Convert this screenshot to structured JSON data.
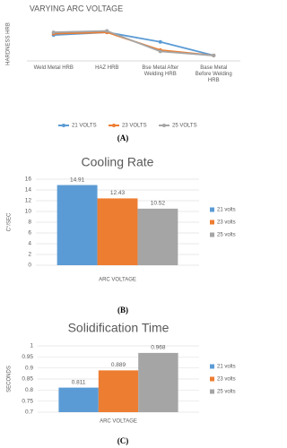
{
  "chart_data": [
    {
      "type": "line",
      "title": "VARYING ARC VOLTAGE",
      "y_label": "HARDNESS HRB",
      "caption": "(A)",
      "categories": [
        "Weld Metal HRB",
        "HAZ HRB",
        "Bse Metal After Welding HRB",
        "Base Metal Before Welding HRB"
      ],
      "series": [
        {
          "name": "21 VOLTS",
          "color": "#5b9bd5",
          "values": [
            89,
            91,
            84,
            74
          ]
        },
        {
          "name": "23 VOLTS",
          "color": "#ed7d31",
          "values": [
            90,
            91,
            78,
            74
          ]
        },
        {
          "name": "25 VOLTS",
          "color": "#a5a5a5",
          "values": [
            91,
            92,
            77,
            74
          ]
        }
      ],
      "ylim": [
        70,
        95
      ],
      "legend": "bottom"
    },
    {
      "type": "bar",
      "title": "Cooling Rate",
      "y_label": "C°/SEC",
      "caption": "(B)",
      "x_label": "ARC VOLTAGE",
      "categories": [
        "ARC VOLTAGE"
      ],
      "series": [
        {
          "name": "21 volts",
          "color": "#5b9bd5",
          "values": [
            14.91
          ]
        },
        {
          "name": "23 volts",
          "color": "#ed7d31",
          "values": [
            12.43
          ]
        },
        {
          "name": "25 volts",
          "color": "#a5a5a5",
          "values": [
            10.52
          ]
        }
      ],
      "ylim": [
        0,
        16
      ],
      "yticks": [
        0,
        2,
        4,
        6,
        8,
        10,
        12,
        14,
        16
      ],
      "grid": true,
      "legend": "right"
    },
    {
      "type": "bar",
      "title": "Solidification Time",
      "y_label": "SECONDS",
      "caption": "(C)",
      "x_label": "ARC VOLTAGE",
      "categories": [
        "ARC VOLTAGE"
      ],
      "series": [
        {
          "name": "21 volts",
          "color": "#5b9bd5",
          "values": [
            0.811
          ]
        },
        {
          "name": "23 volts",
          "color": "#ed7d31",
          "values": [
            0.889
          ]
        },
        {
          "name": "25 volts",
          "color": "#a5a5a5",
          "values": [
            0.968
          ]
        }
      ],
      "ylim": [
        0.7,
        1
      ],
      "yticks": [
        0.7,
        0.75,
        0.8,
        0.85,
        0.9,
        0.95,
        1
      ],
      "grid": true,
      "legend": "right"
    }
  ]
}
